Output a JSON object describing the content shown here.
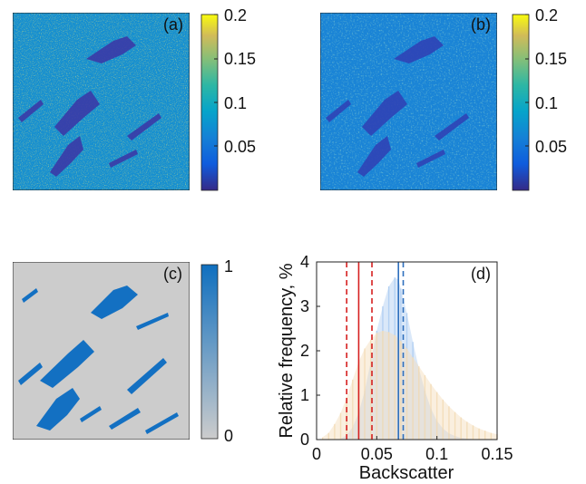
{
  "chart_data": [
    {
      "type": "heatmap",
      "panel_label": "(a)",
      "colorbar": {
        "ticks": [
          0.05,
          0.1,
          0.15,
          0.2
        ],
        "tick_labels": [
          "0.05",
          "0.1",
          "0.15",
          "0.2"
        ],
        "range": [
          0.005,
          0.2
        ],
        "colormap": "parula"
      }
    },
    {
      "type": "heatmap",
      "panel_label": "(b)",
      "colorbar": {
        "ticks": [
          0.05,
          0.1,
          0.15,
          0.2
        ],
        "tick_labels": [
          "0.05",
          "0.1",
          "0.15",
          "0.2"
        ],
        "range": [
          0.005,
          0.2
        ],
        "colormap": "parula"
      }
    },
    {
      "type": "heatmap",
      "panel_label": "(c)",
      "colorbar": {
        "ticks": [
          0,
          1
        ],
        "tick_labels": [
          "0",
          "1"
        ],
        "range": [
          0,
          1
        ],
        "colors": [
          "#cccccc",
          "#0f6fbf"
        ]
      }
    },
    {
      "type": "bar",
      "panel_label": "(d)",
      "xlabel": "Backscatter",
      "ylabel": "Relative frequency, %",
      "xlim": [
        0,
        0.15
      ],
      "ylim": [
        0,
        4
      ],
      "xticks": [
        0,
        0.05,
        0.1,
        0.15
      ],
      "xtick_labels": [
        "0",
        "0.05",
        "0.1",
        "0.15"
      ],
      "yticks": [
        0,
        1,
        2,
        3,
        4
      ],
      "ytick_labels": [
        "0",
        "1",
        "2",
        "3",
        "4"
      ],
      "series": [
        {
          "color": "#aecdf2",
          "x": [
            0.02,
            0.025,
            0.03,
            0.035,
            0.04,
            0.045,
            0.05,
            0.055,
            0.06,
            0.065,
            0.068,
            0.07,
            0.075,
            0.08,
            0.085,
            0.09,
            0.095,
            0.1,
            0.105,
            0.11,
            0.115,
            0.12,
            0.125,
            0.13,
            0.135,
            0.14
          ],
          "values": [
            0.02,
            0.1,
            0.28,
            0.6,
            1.1,
            1.75,
            2.45,
            3.0,
            3.45,
            3.65,
            3.6,
            3.4,
            2.85,
            2.2,
            1.6,
            1.1,
            0.7,
            0.42,
            0.25,
            0.14,
            0.08,
            0.04,
            0.02,
            0.01,
            0.0,
            0.0
          ]
        },
        {
          "color": "#f3dcb7",
          "x": [
            0.005,
            0.01,
            0.015,
            0.02,
            0.025,
            0.03,
            0.035,
            0.04,
            0.045,
            0.05,
            0.055,
            0.06,
            0.065,
            0.07,
            0.075,
            0.08,
            0.085,
            0.09,
            0.095,
            0.1,
            0.105,
            0.11,
            0.115,
            0.12,
            0.125,
            0.13,
            0.135,
            0.14,
            0.145,
            0.15
          ],
          "values": [
            0.05,
            0.15,
            0.35,
            0.6,
            0.95,
            1.35,
            1.75,
            2.05,
            2.25,
            2.4,
            2.45,
            2.42,
            2.35,
            2.22,
            2.05,
            1.85,
            1.65,
            1.45,
            1.25,
            1.07,
            0.9,
            0.75,
            0.62,
            0.5,
            0.4,
            0.32,
            0.25,
            0.2,
            0.15,
            0.12
          ]
        }
      ],
      "vlines": [
        {
          "x": 0.025,
          "color": "#d62020",
          "style": "dashed"
        },
        {
          "x": 0.035,
          "color": "#d62020",
          "style": "solid"
        },
        {
          "x": 0.046,
          "color": "#d62020",
          "style": "dashed"
        },
        {
          "x": 0.068,
          "color": "#2e6fbd",
          "style": "solid"
        },
        {
          "x": 0.072,
          "color": "#2e6fbd",
          "style": "dashed"
        }
      ]
    }
  ]
}
